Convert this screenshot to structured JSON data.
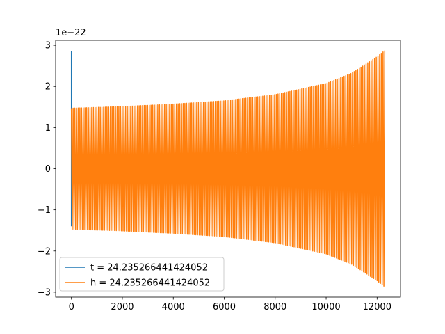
{
  "chart_data": {
    "type": "line",
    "title": "",
    "xlabel": "",
    "ylabel": "",
    "y_offset_label": "1e−22",
    "xlim": [
      -620,
      12920
    ],
    "ylim": [
      -3.12,
      3.12
    ],
    "x_ticks": [
      0,
      2000,
      4000,
      6000,
      8000,
      10000,
      12000
    ],
    "x_tick_labels": [
      "0",
      "2000",
      "4000",
      "6000",
      "8000",
      "10000",
      "12000"
    ],
    "y_ticks": [
      -3,
      -2,
      -1,
      0,
      1,
      2,
      3
    ],
    "y_tick_labels": [
      "−3",
      "−2",
      "−1",
      "0",
      "1",
      "2",
      "3"
    ],
    "grid": false,
    "legend_position": "lower-left",
    "series": [
      {
        "name": "t = 24.235266441424052",
        "color": "#1f77b4",
        "description_points": [
          [
            0,
            2.85
          ],
          [
            0,
            -1.4
          ]
        ]
      },
      {
        "name": "h = 24.235266441424052",
        "color": "#ff7f0e",
        "cycles": 185,
        "x_start": 0,
        "x_end": 12300,
        "envelope": [
          [
            0,
            1.47
          ],
          [
            2000,
            1.51
          ],
          [
            4000,
            1.57
          ],
          [
            6000,
            1.65
          ],
          [
            8000,
            1.8
          ],
          [
            10000,
            2.07
          ],
          [
            11000,
            2.32
          ],
          [
            12000,
            2.72
          ],
          [
            12300,
            2.87
          ]
        ]
      }
    ]
  }
}
